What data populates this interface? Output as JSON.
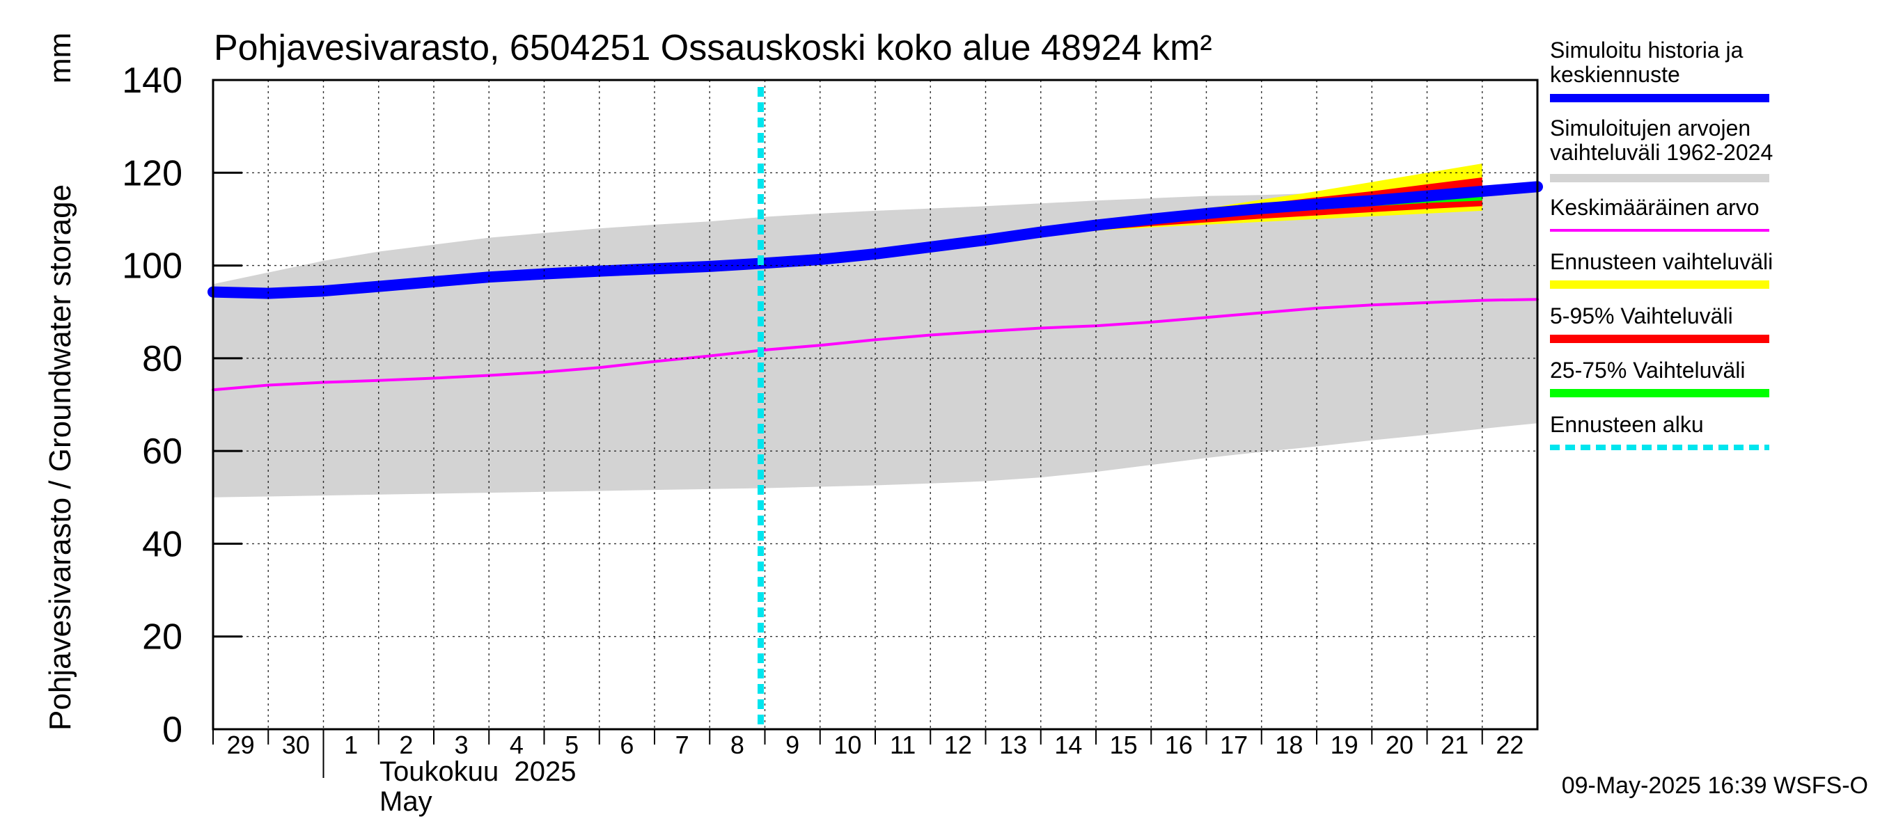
{
  "chart_data": {
    "type": "area",
    "title": "Pohjavesivarasto, 6504251 Ossauskoski koko alue 48924 km²",
    "ylabel": "Pohjavesivarasto / Groundwater storage",
    "yunit": "mm",
    "ylim": [
      0,
      140
    ],
    "yticks": [
      "0",
      "20",
      "40",
      "60",
      "80",
      "100",
      "120",
      "140"
    ],
    "xlim": [
      "2025-04-29",
      "2025-05-23"
    ],
    "xtick_labels": [
      "29",
      "30",
      "1",
      "2",
      "3",
      "4",
      "5",
      "6",
      "7",
      "8",
      "9",
      "10",
      "11",
      "12",
      "13",
      "14",
      "15",
      "16",
      "17",
      "18",
      "19",
      "20",
      "21",
      "22"
    ],
    "xlabel_month_fi": "Toukokuu  2025",
    "xlabel_month_en": "May",
    "forecast_start": "2025-05-09",
    "footer": "09-May-2025 16:39 WSFS-O",
    "grid": true,
    "legend_position": "right",
    "legend": [
      {
        "label": "Simuloitu historia ja keskiennuste",
        "color": "#0000ff",
        "style": "thick"
      },
      {
        "label": "Simuloitujen arvojen vaihteluväli 1962-2024",
        "color": "#d3d3d3",
        "style": "thick"
      },
      {
        "label": "Keskimääräinen arvo",
        "color": "#ff00ff",
        "style": "thin"
      },
      {
        "label": "Ennusteen vaihteluväli",
        "color": "#ffff00",
        "style": "thick"
      },
      {
        "label": "5-95% Vaihteluväli",
        "color": "#ff0000",
        "style": "thick"
      },
      {
        "label": "25-75% Vaihteluväli",
        "color": "#00ff00",
        "style": "thick"
      },
      {
        "label": "Ennusteen alku",
        "color": "#00e5ee",
        "style": "dashed"
      }
    ],
    "x": [
      "2025-04-29",
      "2025-04-30",
      "2025-05-01",
      "2025-05-02",
      "2025-05-03",
      "2025-05-04",
      "2025-05-05",
      "2025-05-06",
      "2025-05-07",
      "2025-05-08",
      "2025-05-09",
      "2025-05-10",
      "2025-05-11",
      "2025-05-12",
      "2025-05-13",
      "2025-05-14",
      "2025-05-15",
      "2025-05-16",
      "2025-05-17",
      "2025-05-18",
      "2025-05-19",
      "2025-05-20",
      "2025-05-21",
      "2025-05-22",
      "2025-05-23"
    ],
    "series": [
      {
        "name": "Simuloitujen arvojen vaihteluväli 1962-2024",
        "kind": "band",
        "color": "#d3d3d3",
        "upper": [
          96,
          98.5,
          101,
          103,
          104.5,
          106,
          107,
          108,
          108.8,
          109.5,
          110.5,
          111.2,
          111.8,
          112.3,
          112.8,
          113.4,
          114,
          114.5,
          115,
          115.2,
          115.6,
          116,
          116.5,
          117,
          118
        ],
        "lower": [
          50,
          50.2,
          50.4,
          50.6,
          50.8,
          51,
          51.2,
          51.4,
          51.6,
          51.8,
          52,
          52.3,
          52.6,
          53,
          53.5,
          54.3,
          55.5,
          57,
          58.5,
          59.8,
          61,
          62.3,
          63.5,
          64.8,
          66
        ]
      },
      {
        "name": "Ennusteen vaihteluväli",
        "kind": "band",
        "color": "#ffff00",
        "x_from": "2025-05-14",
        "upper": [
          107,
          108.8,
          110.5,
          112.3,
          114.2,
          116,
          118,
          120,
          122
        ],
        "lower": [
          106.5,
          107.5,
          108.2,
          108.8,
          109.4,
          110,
          110.6,
          111.2,
          111.8
        ]
      },
      {
        "name": "5-95% Vaihteluväli",
        "kind": "band",
        "color": "#ff0000",
        "x_from": "2025-05-14",
        "upper": [
          107,
          108.6,
          110.2,
          111.8,
          113.3,
          114.7,
          116,
          117.5,
          119
        ],
        "lower": [
          106.5,
          107.6,
          108.5,
          109.3,
          110.1,
          110.8,
          111.5,
          112.2,
          112.8
        ]
      },
      {
        "name": "25-75% Vaihteluväli",
        "kind": "band",
        "color": "#00ff00",
        "x_from": "2025-05-14",
        "upper": [
          107,
          108.5,
          110,
          111.3,
          112.5,
          113.5,
          114.5,
          115.2,
          116
        ],
        "lower": [
          106.8,
          108,
          109.2,
          110.2,
          111.2,
          112,
          112.8,
          113.5,
          114
        ]
      },
      {
        "name": "Keskimääräinen arvo",
        "kind": "line",
        "color": "#ff00ff",
        "values": [
          73.2,
          74.2,
          74.8,
          75.2,
          75.7,
          76.3,
          77,
          78,
          79.3,
          80.5,
          81.8,
          82.8,
          84,
          85,
          85.8,
          86.5,
          87,
          87.8,
          88.8,
          89.8,
          90.8,
          91.5,
          92,
          92.5,
          92.7
        ]
      },
      {
        "name": "Simuloitu historia ja keskiennuste",
        "kind": "line",
        "color": "#0000ff",
        "values": [
          94.3,
          94,
          94.5,
          95.5,
          96.5,
          97.5,
          98.2,
          98.8,
          99.3,
          99.8,
          100.5,
          101.3,
          102.5,
          104,
          105.5,
          107.2,
          108.7,
          110,
          111.2,
          112.3,
          113.2,
          114,
          115,
          116,
          117
        ]
      }
    ]
  }
}
